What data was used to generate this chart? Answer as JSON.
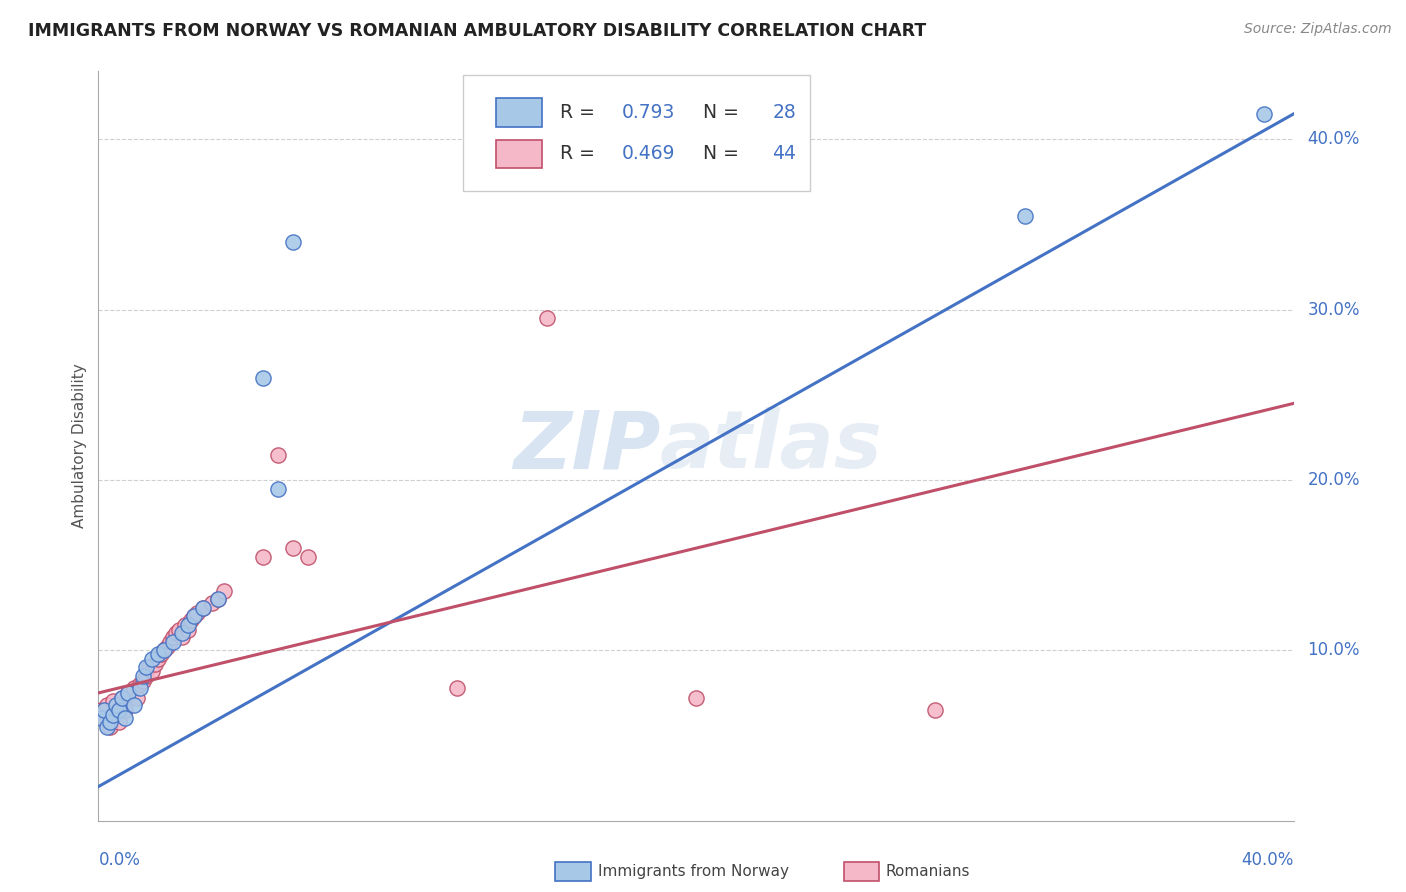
{
  "title": "IMMIGRANTS FROM NORWAY VS ROMANIAN AMBULATORY DISABILITY CORRELATION CHART",
  "source": "Source: ZipAtlas.com",
  "ylabel": "Ambulatory Disability",
  "xlim": [
    0.0,
    0.4
  ],
  "ylim": [
    0.0,
    0.44
  ],
  "yticks": [
    0.1,
    0.2,
    0.3,
    0.4
  ],
  "ytick_labels": [
    "10.0%",
    "20.0%",
    "30.0%",
    "40.0%"
  ],
  "norway_color": "#a8c8e8",
  "norway_line_color": "#4472c4",
  "romanian_color": "#f4b8c8",
  "romanian_line_color": "#c0506a",
  "norway_R": 0.793,
  "norway_N": 28,
  "romanian_R": 0.469,
  "romanian_N": 44,
  "norway_scatter": [
    [
      0.001,
      0.06
    ],
    [
      0.002,
      0.065
    ],
    [
      0.003,
      0.055
    ],
    [
      0.004,
      0.058
    ],
    [
      0.005,
      0.062
    ],
    [
      0.006,
      0.068
    ],
    [
      0.007,
      0.065
    ],
    [
      0.008,
      0.072
    ],
    [
      0.009,
      0.06
    ],
    [
      0.01,
      0.075
    ],
    [
      0.012,
      0.068
    ],
    [
      0.014,
      0.078
    ],
    [
      0.015,
      0.085
    ],
    [
      0.016,
      0.09
    ],
    [
      0.018,
      0.095
    ],
    [
      0.02,
      0.098
    ],
    [
      0.022,
      0.1
    ],
    [
      0.025,
      0.105
    ],
    [
      0.028,
      0.11
    ],
    [
      0.03,
      0.115
    ],
    [
      0.032,
      0.12
    ],
    [
      0.035,
      0.125
    ],
    [
      0.04,
      0.13
    ],
    [
      0.055,
      0.26
    ],
    [
      0.06,
      0.195
    ],
    [
      0.065,
      0.34
    ],
    [
      0.31,
      0.355
    ],
    [
      0.39,
      0.415
    ]
  ],
  "romanian_scatter": [
    [
      0.001,
      0.065
    ],
    [
      0.002,
      0.06
    ],
    [
      0.003,
      0.068
    ],
    [
      0.004,
      0.055
    ],
    [
      0.005,
      0.07
    ],
    [
      0.006,
      0.062
    ],
    [
      0.007,
      0.058
    ],
    [
      0.008,
      0.072
    ],
    [
      0.009,
      0.065
    ],
    [
      0.01,
      0.075
    ],
    [
      0.012,
      0.078
    ],
    [
      0.013,
      0.072
    ],
    [
      0.014,
      0.08
    ],
    [
      0.015,
      0.082
    ],
    [
      0.016,
      0.085
    ],
    [
      0.017,
      0.09
    ],
    [
      0.018,
      0.088
    ],
    [
      0.019,
      0.092
    ],
    [
      0.02,
      0.095
    ],
    [
      0.021,
      0.098
    ],
    [
      0.022,
      0.1
    ],
    [
      0.023,
      0.102
    ],
    [
      0.024,
      0.105
    ],
    [
      0.025,
      0.108
    ],
    [
      0.026,
      0.11
    ],
    [
      0.027,
      0.112
    ],
    [
      0.028,
      0.108
    ],
    [
      0.029,
      0.115
    ],
    [
      0.03,
      0.112
    ],
    [
      0.031,
      0.118
    ],
    [
      0.032,
      0.12
    ],
    [
      0.033,
      0.122
    ],
    [
      0.035,
      0.125
    ],
    [
      0.038,
      0.128
    ],
    [
      0.04,
      0.13
    ],
    [
      0.042,
      0.135
    ],
    [
      0.055,
      0.155
    ],
    [
      0.06,
      0.215
    ],
    [
      0.065,
      0.16
    ],
    [
      0.07,
      0.155
    ],
    [
      0.12,
      0.078
    ],
    [
      0.15,
      0.295
    ],
    [
      0.2,
      0.072
    ],
    [
      0.28,
      0.065
    ]
  ],
  "norway_line": [
    [
      0.0,
      0.02
    ],
    [
      0.4,
      0.415
    ]
  ],
  "romanian_line": [
    [
      0.0,
      0.075
    ],
    [
      0.4,
      0.245
    ]
  ],
  "watermark_zip": "ZIP",
  "watermark_atlas": "atlas",
  "background_color": "#ffffff",
  "grid_color": "#d0d0d0",
  "text_color": "#4472c4",
  "label_color": "#555555"
}
